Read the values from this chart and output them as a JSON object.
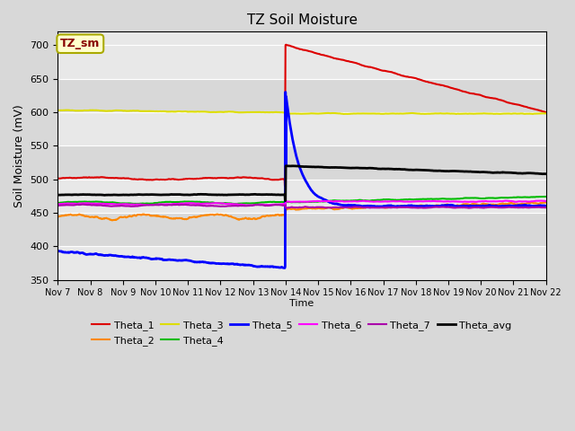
{
  "title": "TZ Soil Moisture",
  "xlabel": "Time",
  "ylabel": "Soil Moisture (mV)",
  "ylim": [
    350,
    720
  ],
  "yticks": [
    350,
    400,
    450,
    500,
    550,
    600,
    650,
    700
  ],
  "background_color": "#e8e8e8",
  "annotation_text": "TZ_sm",
  "annotation_bg": "#ffffcc",
  "annotation_border": "#aaaa00",
  "annotation_text_color": "#880000",
  "series": {
    "Theta_1": {
      "color": "#dd0000",
      "linewidth": 1.5
    },
    "Theta_2": {
      "color": "#ff8800",
      "linewidth": 1.5
    },
    "Theta_3": {
      "color": "#dddd00",
      "linewidth": 1.5
    },
    "Theta_4": {
      "color": "#00bb00",
      "linewidth": 1.5
    },
    "Theta_5": {
      "color": "#0000ff",
      "linewidth": 2.0
    },
    "Theta_6": {
      "color": "#ff00ff",
      "linewidth": 1.5
    },
    "Theta_7": {
      "color": "#aa00aa",
      "linewidth": 1.5
    },
    "Theta_avg": {
      "color": "#000000",
      "linewidth": 2.0
    }
  }
}
